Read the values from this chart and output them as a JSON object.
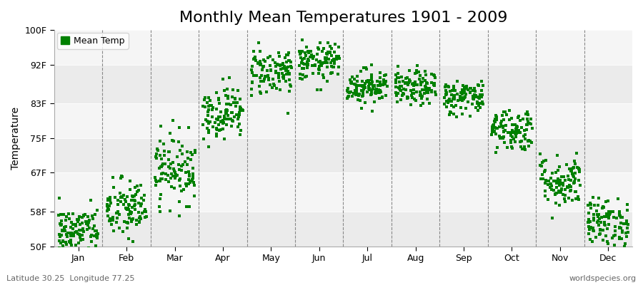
{
  "title": "Monthly Mean Temperatures 1901 - 2009",
  "ylabel": "Temperature",
  "xlabel_labels": [
    "Jan",
    "Feb",
    "Mar",
    "Apr",
    "May",
    "Jun",
    "Jul",
    "Aug",
    "Sep",
    "Oct",
    "Nov",
    "Dec"
  ],
  "ytick_labels": [
    "50F",
    "58F",
    "67F",
    "75F",
    "83F",
    "92F",
    "100F"
  ],
  "ytick_values": [
    50,
    58,
    67,
    75,
    83,
    92,
    100
  ],
  "ylim": [
    50,
    100
  ],
  "dot_color": "#008000",
  "bg_bands": [
    "#ebebeb",
    "#f5f5f5",
    "#ebebeb",
    "#f5f5f5",
    "#ebebeb",
    "#f5f5f5"
  ],
  "legend_label": "Mean Temp",
  "footer_left": "Latitude 30.25  Longitude 77.25",
  "footer_right": "worldspecies.org",
  "mean_temps_f": [
    53.5,
    58.5,
    68.0,
    81.0,
    90.5,
    92.5,
    87.0,
    86.5,
    84.5,
    77.0,
    65.0,
    55.5
  ],
  "std_temps_f": [
    2.8,
    3.5,
    4.0,
    3.0,
    2.8,
    2.2,
    2.0,
    2.0,
    2.0,
    2.5,
    3.0,
    2.8
  ],
  "n_years": 109,
  "title_fontsize": 16,
  "axis_fontsize": 10,
  "tick_fontsize": 9,
  "footer_fontsize": 8,
  "dot_size": 5,
  "dot_marker": "s"
}
